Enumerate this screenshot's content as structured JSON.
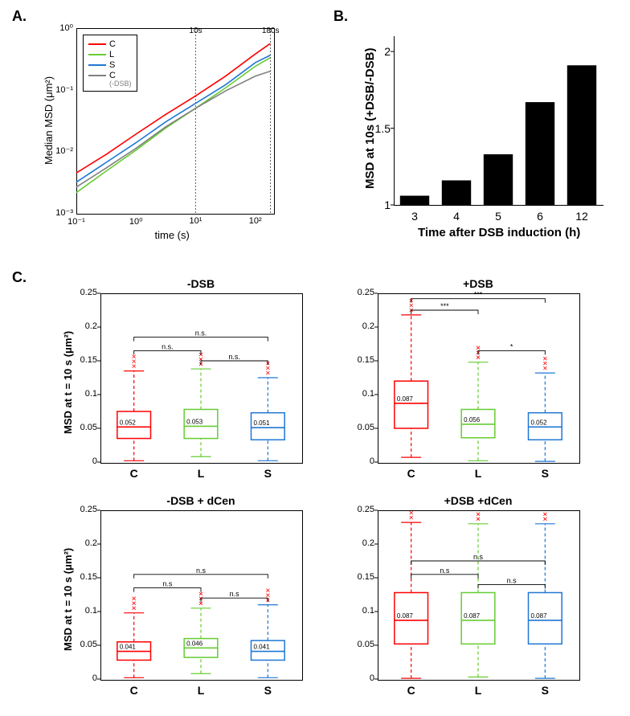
{
  "labels": {
    "panelA": "A.",
    "panelB": "B.",
    "panelC": "C."
  },
  "colors": {
    "C": "#ff0000",
    "L": "#66cc33",
    "S": "#1f77d4",
    "C_noDSB": "#808080",
    "black": "#000000",
    "bg": "#ffffff"
  },
  "panelA": {
    "xlabel": "time (s)",
    "ylabel": "Median MSD (μm²)",
    "xlim_log": [
      -1,
      2.3
    ],
    "ylim_log": [
      -3,
      0
    ],
    "markers": [
      {
        "value": "10s",
        "x_log": 1
      },
      {
        "value": "180s",
        "x_log": 2.255
      }
    ],
    "xticks": [
      {
        "label": "10⁻¹",
        "log": -1
      },
      {
        "label": "10⁰",
        "log": 0
      },
      {
        "label": "10¹",
        "log": 1
      },
      {
        "label": "10²",
        "log": 2
      }
    ],
    "yticks": [
      {
        "label": "10⁻³",
        "log": -3
      },
      {
        "label": "10⁻²",
        "log": -2
      },
      {
        "label": "10⁻¹",
        "log": -1
      },
      {
        "label": "10⁰",
        "log": 0
      }
    ],
    "legend": [
      {
        "label": "C",
        "color": "#ff0000"
      },
      {
        "label": "L",
        "color": "#66cc33"
      },
      {
        "label": "S",
        "color": "#1f77d4"
      },
      {
        "label": "C",
        "sublabel": "(-DSB)",
        "color": "#808080"
      }
    ],
    "series": [
      {
        "color": "#ff0000",
        "pts": [
          [
            -1,
            -2.35
          ],
          [
            -0.5,
            -2.05
          ],
          [
            0,
            -1.72
          ],
          [
            0.5,
            -1.4
          ],
          [
            1,
            -1.1
          ],
          [
            1.5,
            -0.78
          ],
          [
            2,
            -0.42
          ],
          [
            2.25,
            -0.25
          ]
        ]
      },
      {
        "color": "#66cc33",
        "pts": [
          [
            -1,
            -2.67
          ],
          [
            -0.5,
            -2.32
          ],
          [
            0,
            -1.98
          ],
          [
            0.5,
            -1.62
          ],
          [
            1,
            -1.3
          ],
          [
            1.5,
            -0.97
          ],
          [
            2,
            -0.62
          ],
          [
            2.25,
            -0.48
          ]
        ]
      },
      {
        "color": "#1f77d4",
        "pts": [
          [
            -1,
            -2.5
          ],
          [
            -0.5,
            -2.18
          ],
          [
            0,
            -1.86
          ],
          [
            0.5,
            -1.52
          ],
          [
            1,
            -1.22
          ],
          [
            1.5,
            -0.92
          ],
          [
            2,
            -0.56
          ],
          [
            2.25,
            -0.44
          ]
        ]
      },
      {
        "color": "#808080",
        "pts": [
          [
            -1,
            -2.58
          ],
          [
            -0.5,
            -2.27
          ],
          [
            0,
            -1.95
          ],
          [
            0.5,
            -1.6
          ],
          [
            1,
            -1.3
          ],
          [
            1.5,
            -1.02
          ],
          [
            2,
            -0.78
          ],
          [
            2.25,
            -0.7
          ]
        ]
      }
    ]
  },
  "panelB": {
    "xlabel": "Time after DSB induction (h)",
    "ylabel": "MSD at 10s (+DSB/-DSB)",
    "ylim": [
      1,
      2.1
    ],
    "yticks": [
      1,
      1.5,
      2
    ],
    "categories": [
      "3",
      "4",
      "5",
      "6",
      "12"
    ],
    "values": [
      1.06,
      1.16,
      1.33,
      1.67,
      1.91
    ],
    "bar_color": "#000000",
    "bar_width": 0.7
  },
  "panelC": {
    "ylabel": "MSD at t = 10 s (μm²)",
    "ylim": [
      0,
      0.25
    ],
    "yticks": [
      0,
      0.05,
      0.1,
      0.15,
      0.2,
      0.25
    ],
    "categories": [
      "C",
      "L",
      "S"
    ],
    "cat_colors": [
      "#ff0000",
      "#66cc33",
      "#1f77d4"
    ],
    "panels": [
      {
        "title": "-DSB",
        "boxes": [
          {
            "median": 0.052,
            "q1": 0.035,
            "q3": 0.075,
            "wlow": 0.002,
            "whigh": 0.135,
            "label": "0.052"
          },
          {
            "median": 0.053,
            "q1": 0.035,
            "q3": 0.078,
            "wlow": 0.008,
            "whigh": 0.138,
            "label": "0.053"
          },
          {
            "median": 0.051,
            "q1": 0.033,
            "q3": 0.073,
            "wlow": 0.002,
            "whigh": 0.125,
            "label": "0.051"
          }
        ],
        "sig": [
          {
            "from": 0,
            "to": 1,
            "y": 0.165,
            "label": "n.s."
          },
          {
            "from": 1,
            "to": 2,
            "y": 0.15,
            "label": "n.s."
          },
          {
            "from": 0,
            "to": 2,
            "y": 0.185,
            "label": "n.s."
          }
        ]
      },
      {
        "title": "+DSB",
        "boxes": [
          {
            "median": 0.087,
            "q1": 0.05,
            "q3": 0.12,
            "wlow": 0.007,
            "whigh": 0.218,
            "label": "0.087"
          },
          {
            "median": 0.056,
            "q1": 0.036,
            "q3": 0.078,
            "wlow": 0.002,
            "whigh": 0.148,
            "label": "0.056"
          },
          {
            "median": 0.052,
            "q1": 0.033,
            "q3": 0.073,
            "wlow": 0.001,
            "whigh": 0.132,
            "label": "0.052"
          }
        ],
        "sig": [
          {
            "from": 0,
            "to": 1,
            "y": 0.225,
            "label": "***"
          },
          {
            "from": 1,
            "to": 2,
            "y": 0.165,
            "label": "*"
          },
          {
            "from": 0,
            "to": 2,
            "y": 0.242,
            "label": "***"
          }
        ]
      },
      {
        "title": "-DSB + dCen",
        "boxes": [
          {
            "median": 0.041,
            "q1": 0.028,
            "q3": 0.055,
            "wlow": 0.002,
            "whigh": 0.098,
            "label": "0.041"
          },
          {
            "median": 0.046,
            "q1": 0.032,
            "q3": 0.06,
            "wlow": 0.008,
            "whigh": 0.105,
            "label": "0.046"
          },
          {
            "median": 0.041,
            "q1": 0.028,
            "q3": 0.057,
            "wlow": 0.002,
            "whigh": 0.11,
            "label": "0.041"
          }
        ],
        "sig": [
          {
            "from": 0,
            "to": 1,
            "y": 0.135,
            "label": "n.s"
          },
          {
            "from": 1,
            "to": 2,
            "y": 0.12,
            "label": "n.s"
          },
          {
            "from": 0,
            "to": 2,
            "y": 0.155,
            "label": "n.s"
          }
        ]
      },
      {
        "title": "+DSB +dCen",
        "boxes": [
          {
            "median": 0.087,
            "q1": 0.052,
            "q3": 0.128,
            "wlow": 0.001,
            "whigh": 0.232,
            "label": "0.087"
          },
          {
            "median": 0.087,
            "q1": 0.052,
            "q3": 0.128,
            "wlow": 0.003,
            "whigh": 0.23,
            "label": "0.087"
          },
          {
            "median": 0.087,
            "q1": 0.052,
            "q3": 0.128,
            "wlow": 0.001,
            "whigh": 0.23,
            "label": "0.087"
          }
        ],
        "sig": [
          {
            "from": 0,
            "to": 1,
            "y": 0.155,
            "label": "n.s"
          },
          {
            "from": 1,
            "to": 2,
            "y": 0.14,
            "label": "n.s"
          },
          {
            "from": 0,
            "to": 2,
            "y": 0.175,
            "label": "n.s"
          }
        ]
      }
    ]
  }
}
